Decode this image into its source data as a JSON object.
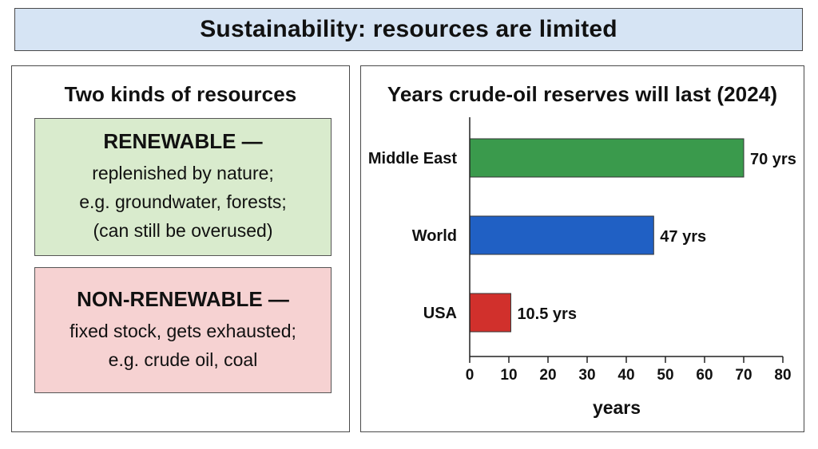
{
  "title": "Sustainability: resources are limited",
  "left_panel": {
    "heading": "Two kinds of resources",
    "renewable": {
      "title": "RENEWABLE —",
      "lines": [
        "replenished by nature;",
        "e.g. groundwater, forests;",
        "(can still be overused)"
      ]
    },
    "non_renewable": {
      "title": "NON-RENEWABLE —",
      "lines": [
        "fixed stock, gets exhausted;",
        "e.g. crude oil, coal"
      ]
    }
  },
  "colors": {
    "title_bg": "#d6e4f4",
    "renewable_bg": "#d9ebcd",
    "non_renewable_bg": "#f6d2d2"
  },
  "chart_data": {
    "type": "bar",
    "orientation": "horizontal",
    "title": "Years crude-oil reserves will last (2024)",
    "xlabel": "years",
    "ylabel": "",
    "categories": [
      "Middle East",
      "World",
      "USA"
    ],
    "values": [
      70,
      47,
      10.5
    ],
    "value_labels": [
      "70 yrs",
      "47 yrs",
      "10.5 yrs"
    ],
    "bar_colors": [
      "#3a9a4c",
      "#2060c4",
      "#d1302c"
    ],
    "xlim": [
      0,
      80
    ],
    "xticks": [
      "0",
      "10",
      "20",
      "30",
      "40",
      "50",
      "60",
      "70",
      "80"
    ],
    "grid": false,
    "legend": "none"
  }
}
